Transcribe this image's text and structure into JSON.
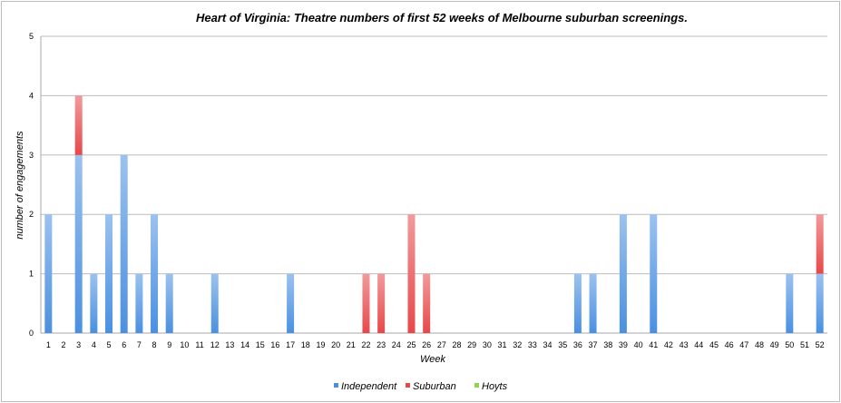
{
  "chart_data": {
    "type": "bar",
    "stacked": true,
    "title": "Heart of Virginia: Theatre numbers of first 52 weeks of Melbourne suburban screenings.",
    "xlabel": "Week",
    "ylabel": "number of engagements",
    "ylim": [
      0,
      5
    ],
    "yticks": [
      "0",
      "1",
      "2",
      "3",
      "4",
      "5"
    ],
    "grid": true,
    "legend_position": "bottom",
    "categories": [
      "1",
      "2",
      "3",
      "4",
      "5",
      "6",
      "7",
      "8",
      "9",
      "10",
      "11",
      "12",
      "13",
      "14",
      "15",
      "16",
      "17",
      "18",
      "19",
      "20",
      "21",
      "22",
      "23",
      "24",
      "25",
      "26",
      "27",
      "28",
      "29",
      "30",
      "31",
      "32",
      "33",
      "34",
      "35",
      "36",
      "37",
      "38",
      "39",
      "40",
      "41",
      "42",
      "43",
      "44",
      "45",
      "46",
      "47",
      "48",
      "49",
      "50",
      "51",
      "52"
    ],
    "series": [
      {
        "name": "Independent",
        "color": "#4a90e2",
        "values": [
          2,
          0,
          3,
          1,
          2,
          3,
          1,
          2,
          1,
          0,
          0,
          1,
          0,
          0,
          0,
          0,
          1,
          0,
          0,
          0,
          0,
          0,
          0,
          0,
          0,
          0,
          0,
          0,
          0,
          0,
          0,
          0,
          0,
          0,
          0,
          1,
          1,
          0,
          2,
          0,
          2,
          0,
          0,
          0,
          0,
          0,
          0,
          0,
          0,
          1,
          0,
          1
        ]
      },
      {
        "name": "Suburban",
        "color": "#e8484a",
        "values": [
          0,
          0,
          1,
          0,
          0,
          0,
          0,
          0,
          0,
          0,
          0,
          0,
          0,
          0,
          0,
          0,
          0,
          0,
          0,
          0,
          0,
          1,
          1,
          0,
          2,
          1,
          0,
          0,
          0,
          0,
          0,
          0,
          0,
          0,
          0,
          0,
          0,
          0,
          0,
          0,
          0,
          0,
          0,
          0,
          0,
          0,
          0,
          0,
          0,
          0,
          0,
          1
        ]
      },
      {
        "name": "Hoyts",
        "color": "#8ed44f",
        "values": [
          0,
          0,
          0,
          0,
          0,
          0,
          0,
          0,
          0,
          0,
          0,
          0,
          0,
          0,
          0,
          0,
          0,
          0,
          0,
          0,
          0,
          0,
          0,
          0,
          0,
          0,
          0,
          0,
          0,
          0,
          0,
          0,
          0,
          0,
          0,
          0,
          0,
          0,
          0,
          0,
          0,
          0,
          0,
          0,
          0,
          0,
          0,
          0,
          0,
          0,
          0,
          0
        ]
      }
    ]
  }
}
